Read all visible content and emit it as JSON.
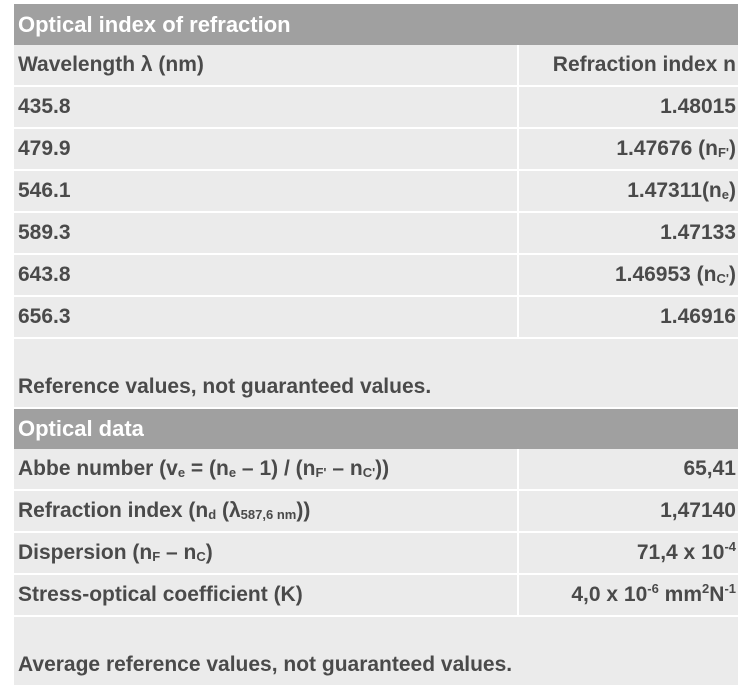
{
  "refraction": {
    "title": "Optical index of refraction",
    "header": {
      "col1": "Wavelength λ (nm)",
      "col2": "Refraction index n"
    },
    "rows": [
      {
        "wavelength": "435.8",
        "index": "1.48015",
        "index_suffix": "",
        "sub": "",
        "index_close": ""
      },
      {
        "wavelength": "479.9",
        "index": "1.47676 (n",
        "index_suffix": "",
        "sub": "F'",
        "index_close": ")"
      },
      {
        "wavelength": "546.1",
        "index": "1.47311(n",
        "index_suffix": "",
        "sub": "e",
        "index_close": ")"
      },
      {
        "wavelength": "589.3",
        "index": "1.47133",
        "index_suffix": "",
        "sub": "",
        "index_close": ""
      },
      {
        "wavelength": "643.8",
        "index": "1.46953 (n",
        "index_suffix": "",
        "sub": "C'",
        "index_close": ")"
      },
      {
        "wavelength": "656.3",
        "index": "1.46916",
        "index_suffix": "",
        "sub": "",
        "index_close": ""
      }
    ],
    "note": "Reference values, not guaranteed values."
  },
  "optical": {
    "title": "Optical data",
    "abbe": {
      "label_a": "Abbe number (v",
      "sub_a": "e",
      "label_b": " = (n",
      "sub_b": "e",
      "label_c": " – 1) / (n",
      "sub_c": "F'",
      "label_d": " – n",
      "sub_d": "C'",
      "label_e": "))",
      "value": "65,41"
    },
    "refraction_index": {
      "label_a": "Refraction index (n",
      "sub_a": "d",
      "label_b": " (λ",
      "sub_b": "587,6 nm",
      "label_c": "))",
      "value": "1,47140"
    },
    "dispersion": {
      "label_a": "Dispersion (n",
      "sub_a": "F",
      "label_b": " – n",
      "sub_b": "C",
      "label_c": ")",
      "value_a": "71,4 x 10",
      "sup_a": "-4"
    },
    "stress": {
      "label": "Stress-optical coefficient (K)",
      "value_a": "4,0 x 10",
      "sup_a": "-6",
      "value_b": " mm",
      "sup_b": "2",
      "value_c": "N",
      "sup_c": "-1"
    },
    "note": "Average reference values, not guaranteed values."
  }
}
